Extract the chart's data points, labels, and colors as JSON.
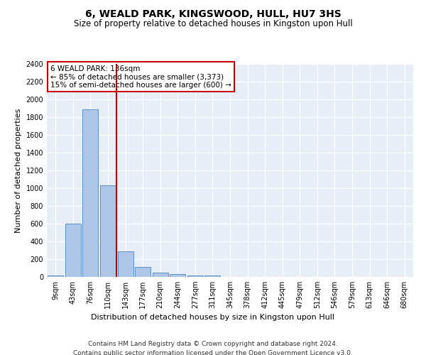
{
  "title": "6, WEALD PARK, KINGSWOOD, HULL, HU7 3HS",
  "subtitle": "Size of property relative to detached houses in Kingston upon Hull",
  "xlabel": "Distribution of detached houses by size in Kingston upon Hull",
  "ylabel": "Number of detached properties",
  "categories": [
    "9sqm",
    "43sqm",
    "76sqm",
    "110sqm",
    "143sqm",
    "177sqm",
    "210sqm",
    "244sqm",
    "277sqm",
    "311sqm",
    "345sqm",
    "378sqm",
    "412sqm",
    "445sqm",
    "479sqm",
    "512sqm",
    "546sqm",
    "579sqm",
    "613sqm",
    "646sqm",
    "680sqm"
  ],
  "values": [
    20,
    600,
    1890,
    1030,
    290,
    115,
    50,
    35,
    20,
    15,
    0,
    0,
    0,
    0,
    0,
    0,
    0,
    0,
    0,
    0,
    0
  ],
  "bar_color": "#aec6e8",
  "bar_edge_color": "#5a8fc2",
  "highlight_line_color": "#cc0000",
  "annotation_text": "6 WEALD PARK: 136sqm\n← 85% of detached houses are smaller (3,373)\n15% of semi-detached houses are larger (600) →",
  "annotation_box_color": "#cc0000",
  "ylim": [
    0,
    2400
  ],
  "yticks": [
    0,
    200,
    400,
    600,
    800,
    1000,
    1200,
    1400,
    1600,
    1800,
    2000,
    2200,
    2400
  ],
  "bg_color": "#e8eef7",
  "grid_color": "#ffffff",
  "footer": "Contains HM Land Registry data © Crown copyright and database right 2024.\nContains public sector information licensed under the Open Government Licence v3.0.",
  "title_fontsize": 10,
  "subtitle_fontsize": 8.5,
  "xlabel_fontsize": 8,
  "ylabel_fontsize": 8,
  "tick_fontsize": 7,
  "footer_fontsize": 6.5,
  "annotation_fontsize": 7.5
}
